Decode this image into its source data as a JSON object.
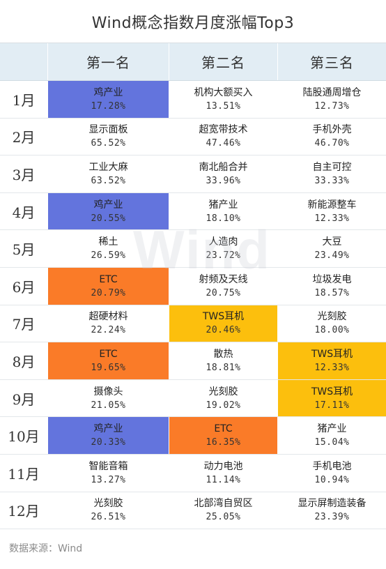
{
  "title": "Wind概念指数月度涨幅Top3",
  "header": {
    "col0": "",
    "col1": "第一名",
    "col2": "第二名",
    "col3": "第三名"
  },
  "colors": {
    "blue": "#6374dd",
    "orange": "#fa7b28",
    "yellow": "#fcbf0d"
  },
  "rows": [
    {
      "month": "1月",
      "cells": [
        {
          "name": "鸡产业",
          "pct": "17.28%"
        },
        {
          "name": "机构大额买入",
          "pct": "13.51%"
        },
        {
          "name": "陆股通周增仓",
          "pct": "12.73%"
        }
      ]
    },
    {
      "month": "2月",
      "cells": [
        {
          "name": "显示面板",
          "pct": "65.52%"
        },
        {
          "name": "超宽带技术",
          "pct": "47.46%"
        },
        {
          "name": "手机外壳",
          "pct": "46.70%"
        }
      ]
    },
    {
      "month": "3月",
      "cells": [
        {
          "name": "工业大麻",
          "pct": "63.52%"
        },
        {
          "name": "南北船合并",
          "pct": "33.96%"
        },
        {
          "name": "自主可控",
          "pct": "33.33%"
        }
      ]
    },
    {
      "month": "4月",
      "cells": [
        {
          "name": "鸡产业",
          "pct": "20.55%"
        },
        {
          "name": "猪产业",
          "pct": "18.10%"
        },
        {
          "name": "新能源整车",
          "pct": "12.33%"
        }
      ]
    },
    {
      "month": "5月",
      "cells": [
        {
          "name": "稀土",
          "pct": "26.59%"
        },
        {
          "name": "人造肉",
          "pct": "23.72%"
        },
        {
          "name": "大豆",
          "pct": "23.49%"
        }
      ]
    },
    {
      "month": "6月",
      "cells": [
        {
          "name": "ETC",
          "pct": "20.79%"
        },
        {
          "name": "射频及天线",
          "pct": "20.75%"
        },
        {
          "name": "垃圾发电",
          "pct": "18.57%"
        }
      ]
    },
    {
      "month": "7月",
      "cells": [
        {
          "name": "超硬材料",
          "pct": "22.24%"
        },
        {
          "name": "TWS耳机",
          "pct": "20.46%"
        },
        {
          "name": "光刻胶",
          "pct": "18.00%"
        }
      ]
    },
    {
      "month": "8月",
      "cells": [
        {
          "name": "ETC",
          "pct": "19.65%"
        },
        {
          "name": "散热",
          "pct": "18.81%"
        },
        {
          "name": "TWS耳机",
          "pct": "12.33%"
        }
      ]
    },
    {
      "month": "9月",
      "cells": [
        {
          "name": "摄像头",
          "pct": "21.05%"
        },
        {
          "name": "光刻胶",
          "pct": "19.02%"
        },
        {
          "name": "TWS耳机",
          "pct": "17.11%"
        }
      ]
    },
    {
      "month": "10月",
      "cells": [
        {
          "name": "鸡产业",
          "pct": "20.33%"
        },
        {
          "name": "ETC",
          "pct": "16.35%"
        },
        {
          "name": "猪产业",
          "pct": "15.04%"
        }
      ]
    },
    {
      "month": "11月",
      "cells": [
        {
          "name": "智能音箱",
          "pct": "13.27%"
        },
        {
          "name": "动力电池",
          "pct": "11.14%"
        },
        {
          "name": "手机电池",
          "pct": "10.94%"
        }
      ]
    },
    {
      "month": "12月",
      "cells": [
        {
          "name": "光刻胶",
          "pct": "26.51%"
        },
        {
          "name": "北部湾自贸区",
          "pct": "25.05%"
        },
        {
          "name": "显示屏制造装备",
          "pct": "23.39%"
        }
      ]
    }
  ],
  "watermark": "Wind",
  "source": "数据来源：Wind"
}
